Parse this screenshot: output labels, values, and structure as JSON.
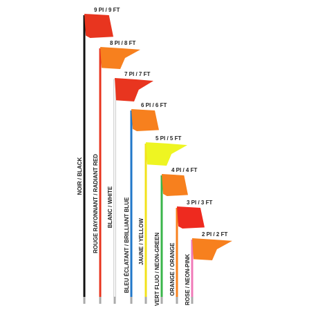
{
  "flags": [
    {
      "size": "9 PI / 9 FT",
      "color_name": "NOIR / BLACK"
    },
    {
      "size": "8 PI / 8 FT",
      "color_name": "ROUGE RAYONNANT / RADIANT RED"
    },
    {
      "size": "7 PI / 7 FT",
      "color_name": "BLANC / WHITE"
    },
    {
      "size": "6 PI / 6 FT",
      "color_name": "BLEU ÉCLATANT / BRILLIANT BLUE"
    },
    {
      "size": "5 PI / 5 FT",
      "color_name": "JAUNE / YELLOW"
    },
    {
      "size": "4 PI / 4 FT",
      "color_name": "VERT FLUO / NEON-GREEN"
    },
    {
      "size": "3 PI / 3 FT",
      "color_name": "ORANGE / ORANGE"
    },
    {
      "size": "2 PI / 2 FT",
      "color_name": "ROSE / NEON-PINK"
    }
  ]
}
